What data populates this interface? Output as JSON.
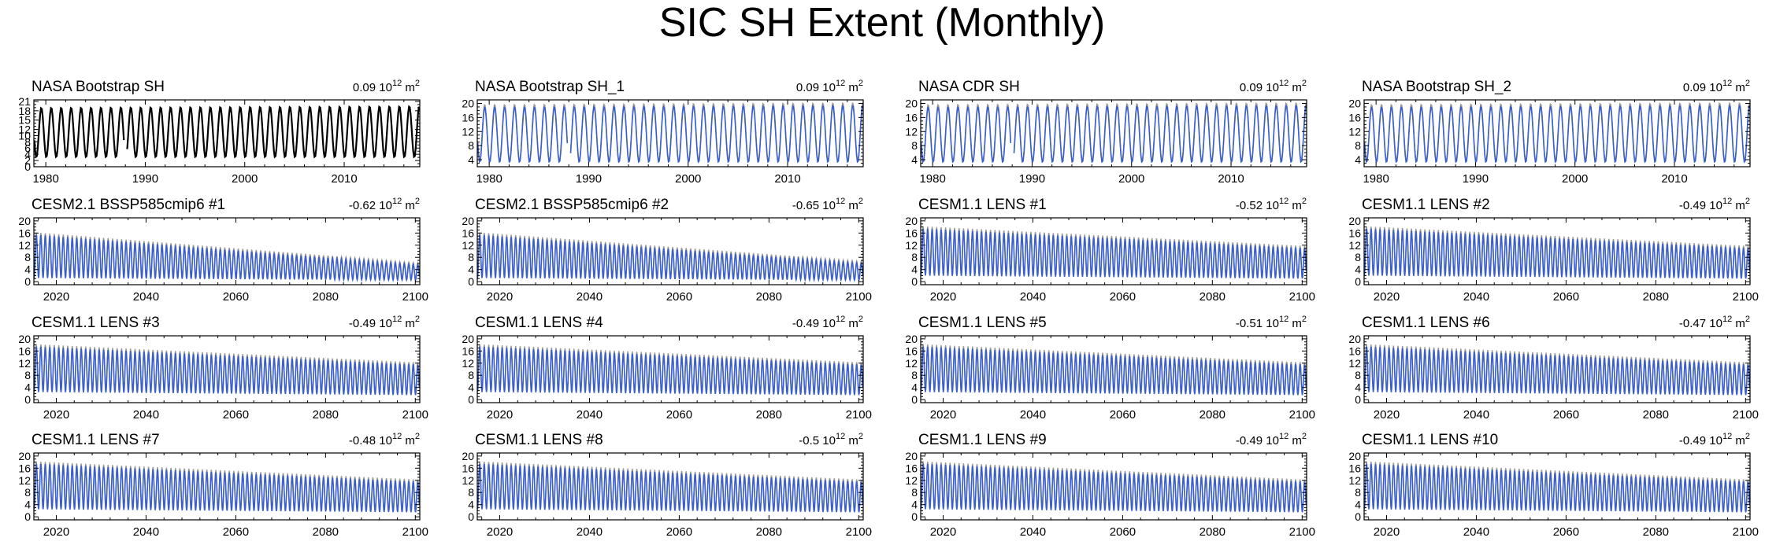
{
  "figure": {
    "title": "SIC SH Extent (Monthly)"
  },
  "colors": {
    "obs_line": "#000000",
    "model_line": "#3a5fcd",
    "model_shadow": "#9a9a9a"
  },
  "chart_data": [
    {
      "type": "line",
      "title": "NASA Bootstrap SH",
      "trend": "0.09",
      "trend_unit": "10",
      "trend_exp": "12",
      "trend_unit_suffix": "m",
      "trend_unit_exp": "2",
      "color_key": "obs_line",
      "xlim": [
        1978.8,
        2017.6
      ],
      "ylim": [
        0,
        21.5
      ],
      "yticks": [
        0,
        2,
        4,
        6,
        8,
        10,
        12,
        15,
        18,
        21
      ],
      "xticks": [
        1980,
        1990,
        2000,
        2010
      ],
      "series": [
        {
          "min": 3,
          "max": 19,
          "min_end": 3,
          "max_end": 19.5
        }
      ],
      "gaps": [
        [
          1987.9,
          1988.1
        ]
      ]
    },
    {
      "type": "line",
      "title": "NASA Bootstrap SH_1",
      "trend": "0.09",
      "trend_unit": "10",
      "trend_exp": "12",
      "trend_unit_suffix": "m",
      "trend_unit_exp": "2",
      "color_key": "model_line",
      "xlim": [
        1978.8,
        2017.6
      ],
      "ylim": [
        2,
        21
      ],
      "yticks": [
        4,
        8,
        12,
        16,
        20
      ],
      "xticks": [
        1980,
        1990,
        2000,
        2010
      ],
      "series": [
        {
          "min": 3.2,
          "max": 19,
          "min_end": 3.2,
          "max_end": 19.5
        }
      ],
      "gaps": [
        [
          1987.9,
          1988.1
        ]
      ]
    },
    {
      "type": "line",
      "title": "NASA CDR SH",
      "trend": "0.09",
      "trend_unit": "10",
      "trend_exp": "12",
      "trend_unit_suffix": "m",
      "trend_unit_exp": "2",
      "color_key": "model_line",
      "xlim": [
        1978.8,
        2017.6
      ],
      "ylim": [
        2,
        21
      ],
      "yticks": [
        4,
        8,
        12,
        16,
        20
      ],
      "xticks": [
        1980,
        1990,
        2000,
        2010
      ],
      "series": [
        {
          "min": 3.2,
          "max": 19,
          "min_end": 3.2,
          "max_end": 19.5
        }
      ],
      "gaps": [
        [
          1987.9,
          1988.1
        ]
      ]
    },
    {
      "type": "line",
      "title": "NASA Bootstrap SH_2",
      "trend": "0.09",
      "trend_unit": "10",
      "trend_exp": "12",
      "trend_unit_suffix": "m",
      "trend_unit_exp": "2",
      "color_key": "model_line",
      "xlim": [
        1978.8,
        2017.6
      ],
      "ylim": [
        2,
        21
      ],
      "yticks": [
        4,
        8,
        12,
        16,
        20
      ],
      "xticks": [
        1980,
        1990,
        2000,
        2010
      ],
      "series": [
        {
          "min": 3.2,
          "max": 19,
          "min_end": 3.2,
          "max_end": 19.5
        }
      ],
      "gaps": []
    },
    {
      "type": "line",
      "title": "CESM2.1 BSSP585cmip6 #1",
      "trend": "-0.62",
      "trend_unit": "10",
      "trend_exp": "12",
      "trend_unit_suffix": "m",
      "trend_unit_exp": "2",
      "color_key": "model_line",
      "xlim": [
        2015,
        2101
      ],
      "ylim": [
        -1,
        21
      ],
      "yticks": [
        0,
        4,
        8,
        12,
        16,
        20
      ],
      "xticks": [
        2020,
        2040,
        2060,
        2080,
        2100
      ],
      "series": [
        {
          "min": 1.2,
          "max": 15.5,
          "min_end": 0.5,
          "max_end": 5.5
        }
      ]
    },
    {
      "type": "line",
      "title": "CESM2.1 BSSP585cmip6 #2",
      "trend": "-0.65",
      "trend_unit": "10",
      "trend_exp": "12",
      "trend_unit_suffix": "m",
      "trend_unit_exp": "2",
      "color_key": "model_line",
      "xlim": [
        2015,
        2101
      ],
      "ylim": [
        -1,
        21
      ],
      "yticks": [
        0,
        4,
        8,
        12,
        16,
        20
      ],
      "xticks": [
        2020,
        2040,
        2060,
        2080,
        2100
      ],
      "series": [
        {
          "min": 1.2,
          "max": 15.5,
          "min_end": 0.5,
          "max_end": 6
        }
      ]
    },
    {
      "type": "line",
      "title": "CESM1.1 LENS #1",
      "trend": "-0.52",
      "trend_unit": "10",
      "trend_exp": "12",
      "trend_unit_suffix": "m",
      "trend_unit_exp": "2",
      "color_key": "model_line",
      "xlim": [
        2015,
        2101
      ],
      "ylim": [
        -1,
        21
      ],
      "yticks": [
        0,
        4,
        8,
        12,
        16,
        20
      ],
      "xticks": [
        2020,
        2040,
        2060,
        2080,
        2100
      ],
      "series": [
        {
          "min": 2,
          "max": 17.5,
          "min_end": 1,
          "max_end": 11
        }
      ]
    },
    {
      "type": "line",
      "title": "CESM1.1 LENS #2",
      "trend": "-0.49",
      "trend_unit": "10",
      "trend_exp": "12",
      "trend_unit_suffix": "m",
      "trend_unit_exp": "2",
      "color_key": "model_line",
      "xlim": [
        2015,
        2101
      ],
      "ylim": [
        -1,
        21
      ],
      "yticks": [
        0,
        4,
        8,
        12,
        16,
        20
      ],
      "xticks": [
        2020,
        2040,
        2060,
        2080,
        2100
      ],
      "series": [
        {
          "min": 2,
          "max": 17.5,
          "min_end": 1,
          "max_end": 11
        }
      ]
    },
    {
      "type": "line",
      "title": "CESM1.1 LENS #3",
      "trend": "-0.49",
      "trend_unit": "10",
      "trend_exp": "12",
      "trend_unit_suffix": "m",
      "trend_unit_exp": "2",
      "color_key": "model_line",
      "xlim": [
        2015,
        2101
      ],
      "ylim": [
        -1,
        21
      ],
      "yticks": [
        0,
        4,
        8,
        12,
        16,
        20
      ],
      "xticks": [
        2020,
        2040,
        2060,
        2080,
        2100
      ],
      "series": [
        {
          "min": 2.5,
          "max": 17.5,
          "min_end": 1.5,
          "max_end": 11.5
        }
      ]
    },
    {
      "type": "line",
      "title": "CESM1.1 LENS #4",
      "trend": "-0.49",
      "trend_unit": "10",
      "trend_exp": "12",
      "trend_unit_suffix": "m",
      "trend_unit_exp": "2",
      "color_key": "model_line",
      "xlim": [
        2015,
        2101
      ],
      "ylim": [
        -1,
        21
      ],
      "yticks": [
        0,
        4,
        8,
        12,
        16,
        20
      ],
      "xticks": [
        2020,
        2040,
        2060,
        2080,
        2100
      ],
      "series": [
        {
          "min": 2.5,
          "max": 17.5,
          "min_end": 1.5,
          "max_end": 11.5
        }
      ]
    },
    {
      "type": "line",
      "title": "CESM1.1 LENS #5",
      "trend": "-0.51",
      "trend_unit": "10",
      "trend_exp": "12",
      "trend_unit_suffix": "m",
      "trend_unit_exp": "2",
      "color_key": "model_line",
      "xlim": [
        2015,
        2101
      ],
      "ylim": [
        -1,
        21
      ],
      "yticks": [
        0,
        4,
        8,
        12,
        16,
        20
      ],
      "xticks": [
        2020,
        2040,
        2060,
        2080,
        2100
      ],
      "series": [
        {
          "min": 2.5,
          "max": 17.5,
          "min_end": 1.5,
          "max_end": 11.5
        }
      ]
    },
    {
      "type": "line",
      "title": "CESM1.1 LENS #6",
      "trend": "-0.47",
      "trend_unit": "10",
      "trend_exp": "12",
      "trend_unit_suffix": "m",
      "trend_unit_exp": "2",
      "color_key": "model_line",
      "xlim": [
        2015,
        2101
      ],
      "ylim": [
        -1,
        21
      ],
      "yticks": [
        0,
        4,
        8,
        12,
        16,
        20
      ],
      "xticks": [
        2020,
        2040,
        2060,
        2080,
        2100
      ],
      "series": [
        {
          "min": 2.5,
          "max": 17.5,
          "min_end": 1.5,
          "max_end": 11.5
        }
      ]
    },
    {
      "type": "line",
      "title": "CESM1.1 LENS #7",
      "trend": "-0.48",
      "trend_unit": "10",
      "trend_exp": "12",
      "trend_unit_suffix": "m",
      "trend_unit_exp": "2",
      "color_key": "model_line",
      "xlim": [
        2015,
        2101
      ],
      "ylim": [
        -1,
        21
      ],
      "yticks": [
        0,
        4,
        8,
        12,
        16,
        20
      ],
      "xticks": [
        2020,
        2040,
        2060,
        2080,
        2100
      ],
      "series": [
        {
          "min": 2.5,
          "max": 17.5,
          "min_end": 1.5,
          "max_end": 11.5
        }
      ]
    },
    {
      "type": "line",
      "title": "CESM1.1 LENS #8",
      "trend": "-0.5",
      "trend_unit": "10",
      "trend_exp": "12",
      "trend_unit_suffix": "m",
      "trend_unit_exp": "2",
      "color_key": "model_line",
      "xlim": [
        2015,
        2101
      ],
      "ylim": [
        -1,
        21
      ],
      "yticks": [
        0,
        4,
        8,
        12,
        16,
        20
      ],
      "xticks": [
        2020,
        2040,
        2060,
        2080,
        2100
      ],
      "series": [
        {
          "min": 2.5,
          "max": 17.5,
          "min_end": 1.5,
          "max_end": 11.5
        }
      ]
    },
    {
      "type": "line",
      "title": "CESM1.1 LENS #9",
      "trend": "-0.49",
      "trend_unit": "10",
      "trend_exp": "12",
      "trend_unit_suffix": "m",
      "trend_unit_exp": "2",
      "color_key": "model_line",
      "xlim": [
        2015,
        2101
      ],
      "ylim": [
        -1,
        21
      ],
      "yticks": [
        0,
        4,
        8,
        12,
        16,
        20
      ],
      "xticks": [
        2020,
        2040,
        2060,
        2080,
        2100
      ],
      "series": [
        {
          "min": 2.5,
          "max": 17.5,
          "min_end": 1.5,
          "max_end": 11.5
        }
      ]
    },
    {
      "type": "line",
      "title": "CESM1.1 LENS #10",
      "trend": "-0.49",
      "trend_unit": "10",
      "trend_exp": "12",
      "trend_unit_suffix": "m",
      "trend_unit_exp": "2",
      "color_key": "model_line",
      "xlim": [
        2015,
        2101
      ],
      "ylim": [
        -1,
        21
      ],
      "yticks": [
        0,
        4,
        8,
        12,
        16,
        20
      ],
      "xticks": [
        2020,
        2040,
        2060,
        2080,
        2100
      ],
      "series": [
        {
          "min": 2.5,
          "max": 17.5,
          "min_end": 1.5,
          "max_end": 11.5
        }
      ]
    }
  ]
}
